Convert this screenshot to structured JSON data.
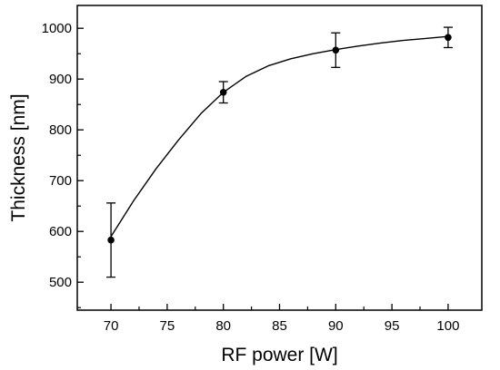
{
  "chart_data": {
    "type": "scatter",
    "title": "",
    "xlabel": "RF power [W]",
    "ylabel": "Thickness [nm]",
    "xlim": [
      67,
      103
    ],
    "ylim": [
      445,
      1045
    ],
    "x_ticks": [
      70,
      75,
      80,
      85,
      90,
      95,
      100
    ],
    "y_ticks": [
      500,
      600,
      700,
      800,
      900,
      1000
    ],
    "grid": false,
    "legend": "none",
    "series": [
      {
        "x": [
          70,
          80,
          90,
          100
        ],
        "y": [
          583,
          874,
          957,
          982
        ],
        "error": [
          73,
          21,
          34,
          20
        ],
        "marker_color": "#000000",
        "fit_line": {
          "x": [
            70,
            72,
            74,
            76,
            78,
            80,
            82,
            84,
            86,
            88,
            90,
            92,
            94,
            96,
            98,
            100
          ],
          "y": [
            590,
            660,
            723,
            780,
            832,
            874,
            905,
            926,
            940,
            950,
            958,
            965,
            971,
            976,
            980,
            984
          ]
        }
      }
    ]
  }
}
